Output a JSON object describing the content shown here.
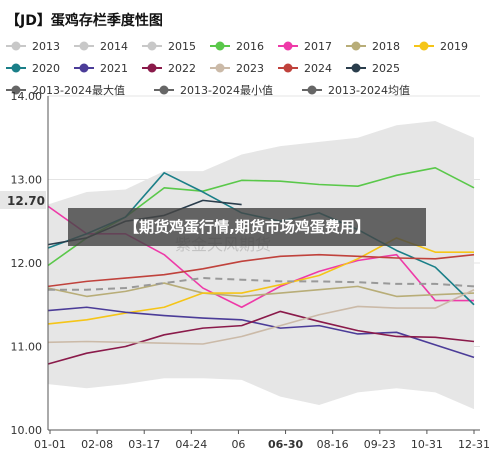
{
  "chart_data": {
    "type": "line",
    "title": "【JD】蛋鸡存栏季度性图",
    "xlabel": "",
    "ylabel": "",
    "x_ticks": [
      "01-01",
      "02-08",
      "03-17",
      "04-24",
      "06",
      "06-30",
      "08-16",
      "09-23",
      "10-31",
      "12-31"
    ],
    "highlight_x_tick": "06-30",
    "y_ticks": [
      "10.00",
      "11.00",
      "12.00",
      "13.00",
      "14.00"
    ],
    "ylim": [
      10.0,
      14.0
    ],
    "current_value_label": "12.70",
    "grid": true,
    "legend_position": "top",
    "banner_text": "【期货鸡蛋行情,期货市场鸡蛋费用】",
    "watermark_text": "紫金天风期货",
    "series": [
      {
        "name": "2013",
        "color": "#c8c8c8",
        "values": []
      },
      {
        "name": "2014",
        "color": "#c8c8c8",
        "values": []
      },
      {
        "name": "2015",
        "color": "#c8c8c8",
        "values": []
      },
      {
        "name": "2016",
        "color": "#5ac84a",
        "values": [
          11.97,
          12.3,
          12.55,
          12.9,
          12.86,
          12.99,
          12.98,
          12.94,
          12.92,
          13.05,
          13.14,
          12.9
        ]
      },
      {
        "name": "2017",
        "color": "#ee3aa8",
        "values": [
          12.68,
          12.35,
          12.35,
          12.1,
          11.7,
          11.47,
          11.72,
          11.9,
          12.03,
          12.1,
          11.55,
          11.55
        ]
      },
      {
        "name": "2018",
        "color": "#b8ad78",
        "values": [
          11.7,
          11.6,
          11.66,
          11.76,
          11.64,
          11.6,
          11.64,
          11.68,
          11.72,
          11.6,
          11.62,
          11.64
        ]
      },
      {
        "name": "2019",
        "color": "#f5c518",
        "values": [
          11.27,
          11.32,
          11.4,
          11.47,
          11.64,
          11.64,
          11.74,
          11.85,
          12.05,
          12.3,
          12.13,
          12.13
        ]
      },
      {
        "name": "2020",
        "color": "#1a7f88",
        "values": [
          12.18,
          12.35,
          12.55,
          13.08,
          12.85,
          12.6,
          12.5,
          12.6,
          12.4,
          12.15,
          11.95,
          11.5
        ]
      },
      {
        "name": "2021",
        "color": "#4b3c98",
        "values": [
          11.43,
          11.47,
          11.41,
          11.37,
          11.34,
          11.32,
          11.22,
          11.25,
          11.15,
          11.17,
          11.02,
          10.87
        ]
      },
      {
        "name": "2022",
        "color": "#8a1a4a",
        "values": [
          10.79,
          10.92,
          11.0,
          11.14,
          11.22,
          11.25,
          11.42,
          11.3,
          11.19,
          11.12,
          11.11,
          11.06
        ]
      },
      {
        "name": "2023",
        "color": "#cbbaa8",
        "values": [
          11.05,
          11.06,
          11.05,
          11.04,
          11.03,
          11.12,
          11.25,
          11.38,
          11.48,
          11.46,
          11.46,
          11.68
        ]
      },
      {
        "name": "2024",
        "color": "#c0423c",
        "values": [
          11.72,
          11.78,
          11.82,
          11.86,
          11.93,
          12.02,
          12.08,
          12.1,
          12.08,
          12.06,
          12.05,
          12.1
        ]
      },
      {
        "name": "2025",
        "color": "#2a3d4c",
        "values": [
          12.22,
          12.3,
          12.5,
          12.57,
          12.75,
          12.7
        ]
      },
      {
        "name": "2013-2024最大值",
        "color": "#d9d9d9",
        "values": [
          12.7,
          12.85,
          12.88,
          13.1,
          13.1,
          13.3,
          13.4,
          13.45,
          13.5,
          13.65,
          13.7,
          13.5
        ]
      },
      {
        "name": "2013-2024最小值",
        "color": "#d9d9d9",
        "values": [
          10.55,
          10.5,
          10.55,
          10.62,
          10.62,
          10.6,
          10.4,
          10.3,
          10.45,
          10.5,
          10.45,
          10.25
        ]
      },
      {
        "name": "2013-2024均值",
        "color": "#999999",
        "values": [
          11.68,
          11.68,
          11.7,
          11.76,
          11.82,
          11.8,
          11.78,
          11.78,
          11.77,
          11.75,
          11.75,
          11.72
        ]
      }
    ]
  }
}
